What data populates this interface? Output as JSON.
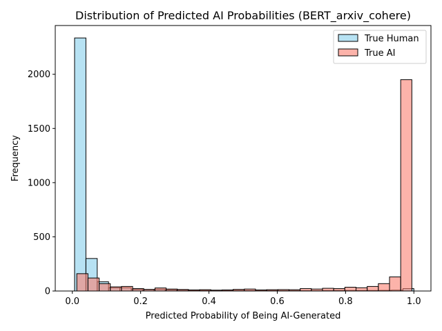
{
  "chart_data": {
    "type": "histogram",
    "title": "Distribution of Predicted AI Probabilities (BERT_arxiv_cohere)",
    "xlabel": "Predicted Probability of Being AI-Generated",
    "ylabel": "Frequency",
    "xlim": [
      -0.05,
      1.05
    ],
    "ylim": [
      0,
      2450
    ],
    "xticks": [
      0.0,
      0.2,
      0.4,
      0.6,
      0.8,
      1.0
    ],
    "xtick_labels": [
      "0.0",
      "0.2",
      "0.4",
      "0.6",
      "0.8",
      "1.0"
    ],
    "yticks": [
      0,
      500,
      1000,
      1500,
      2000
    ],
    "ytick_labels": [
      "0",
      "500",
      "1000",
      "1500",
      "2000"
    ],
    "grid": false,
    "legend_position": "top-right",
    "series": [
      {
        "name": "True Human",
        "color": "#87ceeb",
        "bins": [
          [
            0.0066,
            0.0398,
            2335
          ],
          [
            0.0398,
            0.0729,
            300
          ],
          [
            0.0729,
            0.1061,
            85
          ],
          [
            0.1061,
            0.1392,
            30
          ],
          [
            0.1392,
            0.1724,
            30
          ],
          [
            0.1724,
            0.2055,
            15
          ],
          [
            0.2055,
            0.2387,
            12
          ],
          [
            0.2387,
            0.2718,
            15
          ],
          [
            0.2718,
            0.305,
            10
          ],
          [
            0.305,
            0.3381,
            8
          ],
          [
            0.3381,
            0.3713,
            6
          ],
          [
            0.3713,
            0.4044,
            5
          ],
          [
            0.4044,
            0.4376,
            4
          ],
          [
            0.4376,
            0.4707,
            5
          ],
          [
            0.4707,
            0.5039,
            5
          ],
          [
            0.5039,
            0.537,
            4
          ],
          [
            0.537,
            0.5702,
            3
          ],
          [
            0.5702,
            0.6033,
            4
          ],
          [
            0.6033,
            0.6365,
            3
          ],
          [
            0.6365,
            0.6696,
            3
          ],
          [
            0.6696,
            0.7028,
            3
          ],
          [
            0.7028,
            0.7359,
            3
          ],
          [
            0.7359,
            0.7691,
            4
          ],
          [
            0.7691,
            0.8022,
            5
          ],
          [
            0.8022,
            0.8354,
            5
          ],
          [
            0.8354,
            0.8685,
            5
          ],
          [
            0.8685,
            0.9017,
            5
          ],
          [
            0.9017,
            0.9348,
            6
          ],
          [
            0.9348,
            0.968,
            8
          ],
          [
            0.968,
            1.0,
            22
          ]
        ]
      },
      {
        "name": "True AI",
        "color": "#fa8072",
        "bins": [
          [
            0.0131,
            0.0458,
            160
          ],
          [
            0.0458,
            0.0785,
            120
          ],
          [
            0.0785,
            0.1112,
            68
          ],
          [
            0.1112,
            0.1439,
            38
          ],
          [
            0.1439,
            0.1766,
            42
          ],
          [
            0.1766,
            0.2093,
            22
          ],
          [
            0.2093,
            0.242,
            15
          ],
          [
            0.242,
            0.2747,
            28
          ],
          [
            0.2747,
            0.3074,
            18
          ],
          [
            0.3074,
            0.3401,
            14
          ],
          [
            0.3401,
            0.3728,
            10
          ],
          [
            0.3728,
            0.4055,
            12
          ],
          [
            0.4055,
            0.4382,
            8
          ],
          [
            0.4382,
            0.4709,
            10
          ],
          [
            0.4709,
            0.5036,
            15
          ],
          [
            0.5036,
            0.5363,
            18
          ],
          [
            0.5363,
            0.569,
            10
          ],
          [
            0.569,
            0.6017,
            12
          ],
          [
            0.6017,
            0.6344,
            13
          ],
          [
            0.6344,
            0.6671,
            12
          ],
          [
            0.6671,
            0.6998,
            22
          ],
          [
            0.6998,
            0.7325,
            18
          ],
          [
            0.7325,
            0.7652,
            25
          ],
          [
            0.7652,
            0.7979,
            22
          ],
          [
            0.7979,
            0.8306,
            35
          ],
          [
            0.8306,
            0.8633,
            30
          ],
          [
            0.8633,
            0.896,
            42
          ],
          [
            0.896,
            0.9287,
            68
          ],
          [
            0.9287,
            0.9614,
            130
          ],
          [
            0.9614,
            0.9941,
            1950
          ]
        ]
      }
    ]
  }
}
